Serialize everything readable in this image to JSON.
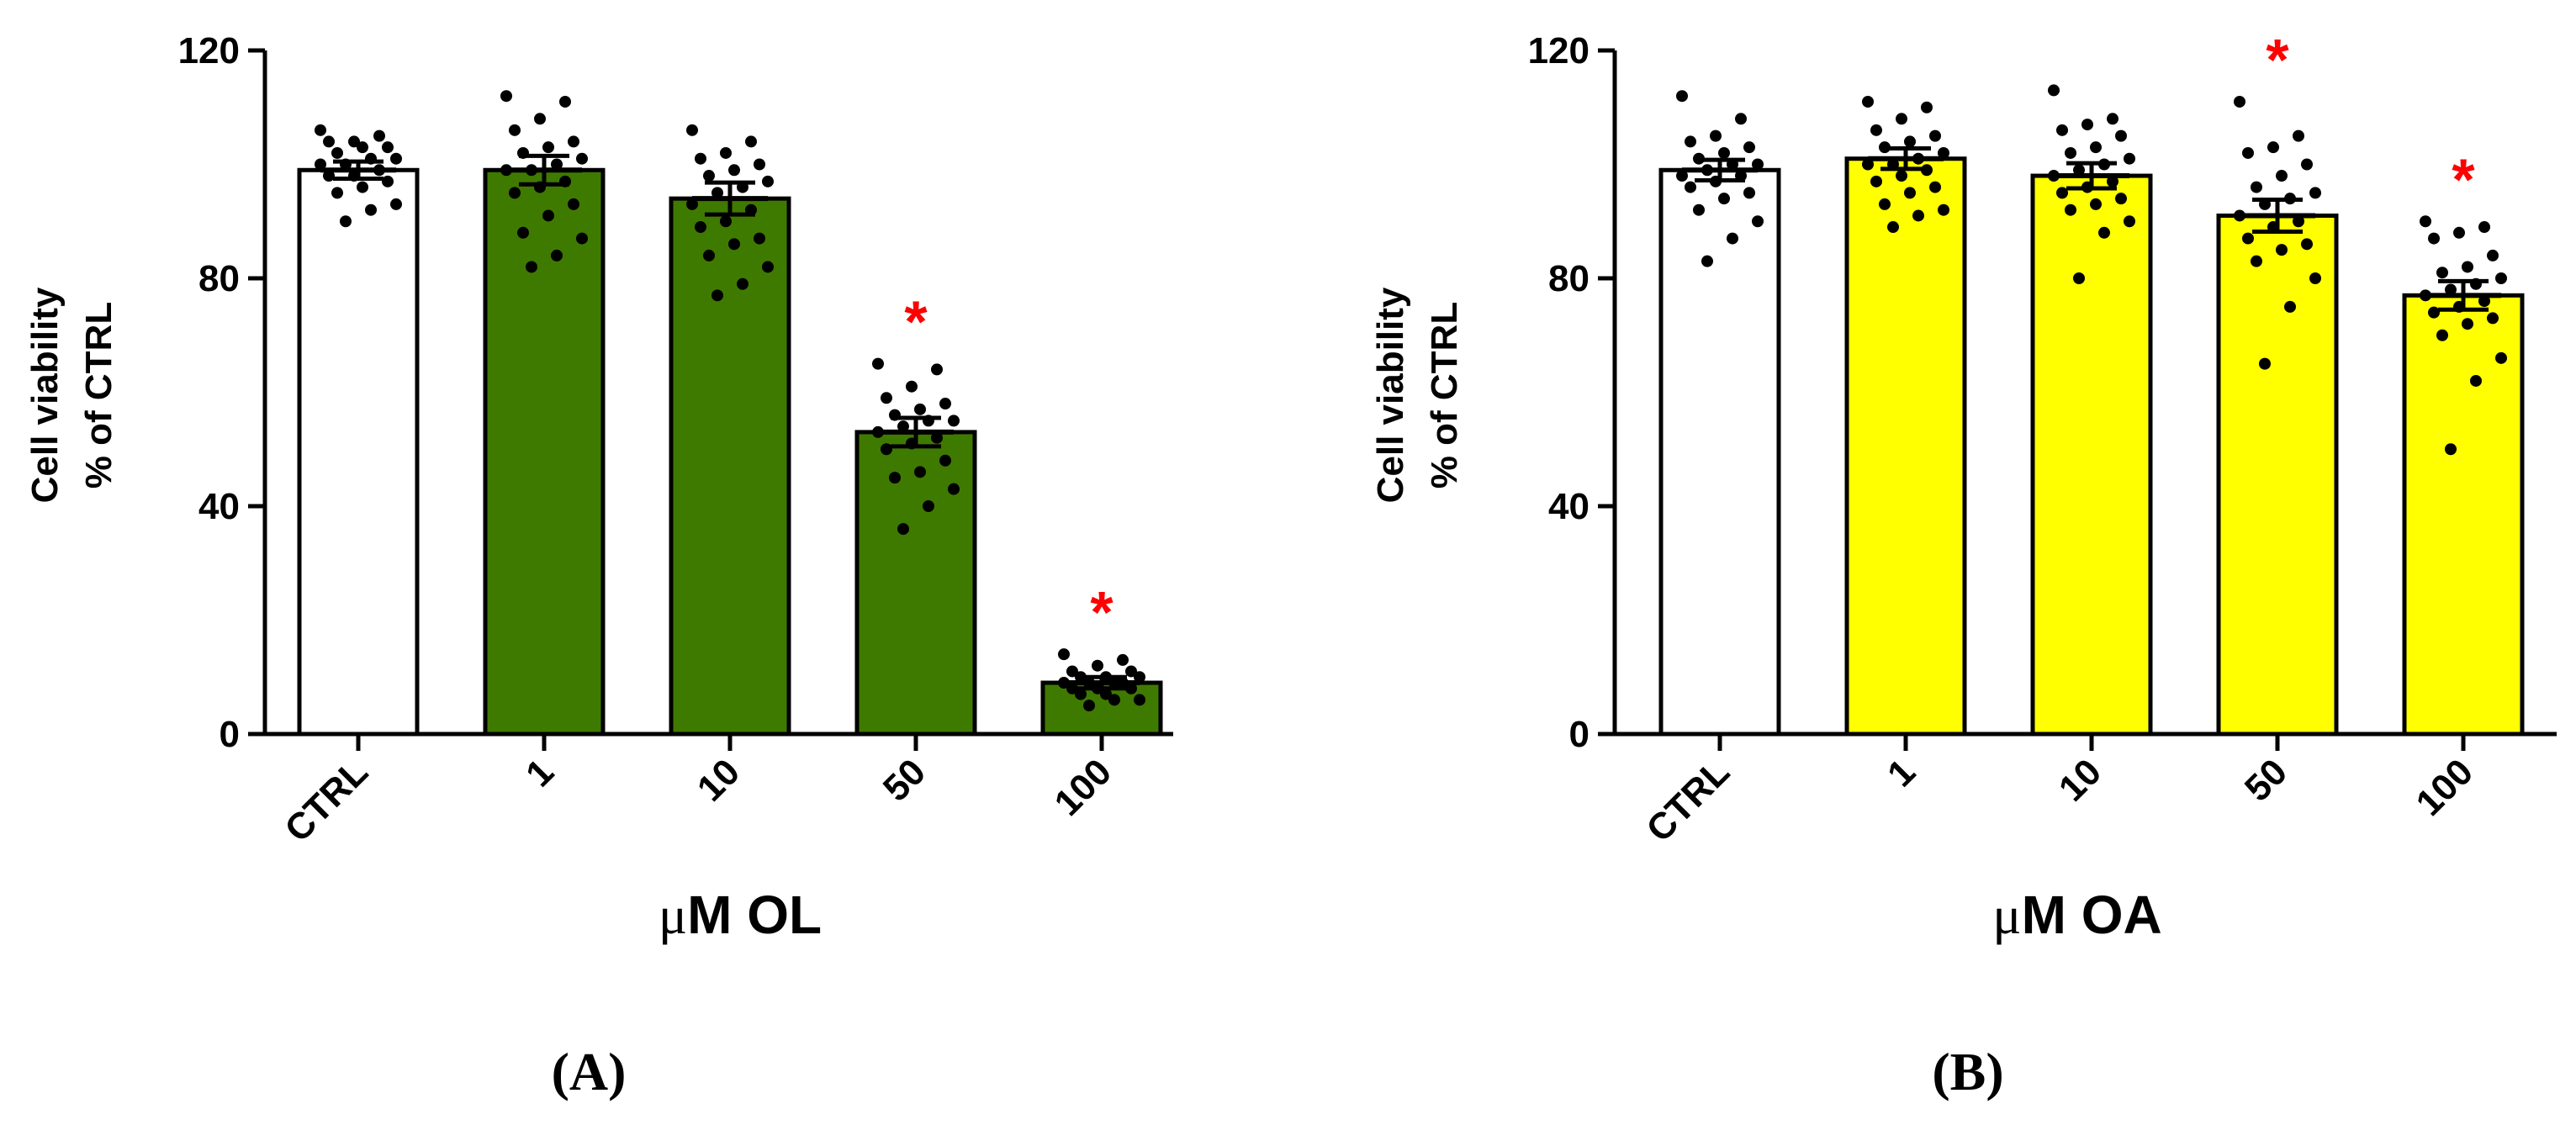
{
  "chart_data": [
    {
      "type": "bar",
      "panel_label": "(A)",
      "categories": [
        "CTRL",
        "1",
        "10",
        "50",
        "100"
      ],
      "values": [
        99,
        99,
        94,
        53,
        9
      ],
      "sem": [
        1.5,
        2.5,
        2.8,
        2.5,
        1.0
      ],
      "bar_colors": [
        "#ffffff",
        "#3f7a00",
        "#3f7a00",
        "#3f7a00",
        "#3f7a00"
      ],
      "significance": [
        "",
        "",
        "",
        "*",
        "*"
      ],
      "points": [
        [
          106,
          105,
          104,
          104,
          103,
          103,
          102,
          101,
          101,
          100,
          100,
          99,
          98,
          98,
          97,
          96,
          95,
          93,
          92,
          90
        ],
        [
          112,
          111,
          108,
          106,
          104,
          103,
          102,
          101,
          100,
          99,
          99,
          97,
          96,
          95,
          93,
          91,
          88,
          87,
          84,
          82
        ],
        [
          106,
          104,
          102,
          101,
          100,
          99,
          98,
          97,
          96,
          95,
          93,
          92,
          90,
          89,
          87,
          86,
          84,
          82,
          79,
          77
        ],
        [
          65,
          64,
          61,
          59,
          58,
          57,
          56,
          55,
          55,
          54,
          53,
          52,
          51,
          50,
          48,
          46,
          45,
          43,
          40,
          36
        ],
        [
          14,
          13,
          12,
          11,
          11,
          10,
          10,
          10,
          9,
          9,
          9,
          9,
          8,
          8,
          8,
          7,
          7,
          6,
          6,
          5
        ]
      ],
      "title": "",
      "xlabel_prefix": "μ",
      "xlabel_rest": "M OL",
      "ylabel_line1": "Cell viability",
      "ylabel_line2": "% of CTRL",
      "yticks": [
        "0",
        "40",
        "80",
        "120"
      ],
      "ylim": [
        0,
        120
      ]
    },
    {
      "type": "bar",
      "panel_label": "(B)",
      "categories": [
        "CTRL",
        "1",
        "10",
        "50",
        "100"
      ],
      "values": [
        99,
        101,
        98,
        91,
        77
      ],
      "sem": [
        1.8,
        1.8,
        2.2,
        2.8,
        2.5
      ],
      "bar_colors": [
        "#ffffff",
        "#ffff00",
        "#ffff00",
        "#ffff00",
        "#ffff00"
      ],
      "significance": [
        "",
        "",
        "",
        "*",
        "*"
      ],
      "points": [
        [
          112,
          108,
          105,
          104,
          103,
          102,
          101,
          100,
          100,
          99,
          98,
          98,
          97,
          96,
          95,
          94,
          92,
          90,
          87,
          83
        ],
        [
          111,
          110,
          108,
          106,
          105,
          104,
          103,
          102,
          101,
          100,
          100,
          99,
          98,
          97,
          96,
          95,
          93,
          92,
          91,
          89
        ],
        [
          113,
          108,
          107,
          106,
          105,
          103,
          102,
          101,
          100,
          99,
          98,
          97,
          96,
          95,
          94,
          93,
          92,
          90,
          88,
          80
        ],
        [
          111,
          105,
          103,
          102,
          100,
          98,
          96,
          95,
          94,
          93,
          91,
          90,
          89,
          87,
          86,
          85,
          83,
          80,
          75,
          65
        ],
        [
          90,
          89,
          88,
          87,
          84,
          82,
          81,
          80,
          79,
          78,
          77,
          76,
          75,
          74,
          73,
          72,
          70,
          66,
          62,
          50
        ]
      ],
      "title": "",
      "xlabel_prefix": "μ",
      "xlabel_rest": "M OA",
      "ylabel_line1": "Cell viability",
      "ylabel_line2": "% of CTRL",
      "yticks": [
        "0",
        "40",
        "80",
        "120"
      ],
      "ylim": [
        0,
        120
      ]
    }
  ]
}
